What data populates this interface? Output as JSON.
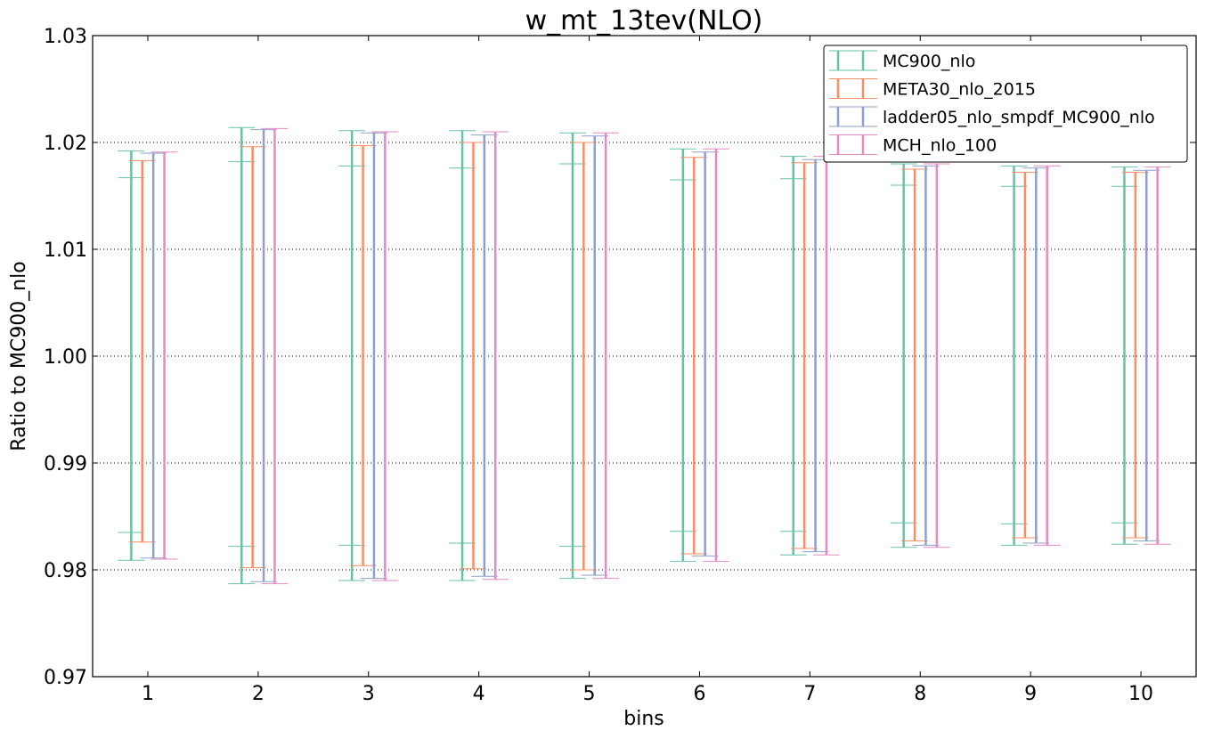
{
  "chart_data": {
    "type": "errorbar",
    "title": "w_mt_13tev(NLO)",
    "xlabel": "bins",
    "ylabel": "Ratio to MC900_nlo",
    "categories": [
      "1",
      "2",
      "3",
      "4",
      "5",
      "6",
      "7",
      "8",
      "9",
      "10"
    ],
    "xlim": [
      0.5,
      10.5
    ],
    "ylim": [
      0.97,
      1.03
    ],
    "yticks": [
      "0.97",
      "0.98",
      "0.99",
      "1.00",
      "1.01",
      "1.02",
      "1.03"
    ],
    "grid": "horizontal dotted",
    "legend_position": "top-right",
    "series": [
      {
        "name": "MC900_nlo",
        "color": "#66c2a5",
        "outer": [
          [
            0.9809,
            1.0192
          ],
          [
            0.9787,
            1.0214
          ],
          [
            0.979,
            1.0211
          ],
          [
            0.979,
            1.0211
          ],
          [
            0.9792,
            1.0209
          ],
          [
            0.9808,
            1.0194
          ],
          [
            0.9814,
            1.0187
          ],
          [
            0.9821,
            1.018
          ],
          [
            0.9823,
            1.0178
          ],
          [
            0.9824,
            1.0177
          ]
        ],
        "inner": [
          [
            0.9835,
            1.0167
          ],
          [
            0.9822,
            1.0182
          ],
          [
            0.9823,
            1.0178
          ],
          [
            0.9825,
            1.0176
          ],
          [
            0.9822,
            1.018
          ],
          [
            0.9836,
            1.0165
          ],
          [
            0.9836,
            1.0166
          ],
          [
            0.9844,
            1.016
          ],
          [
            0.9843,
            1.0159
          ],
          [
            0.9844,
            1.0159
          ]
        ]
      },
      {
        "name": "META30_nlo_2015",
        "color": "#fc8d62",
        "outer": [
          [
            0.9826,
            1.0183
          ],
          [
            0.9802,
            1.0196
          ],
          [
            0.9804,
            1.0197
          ],
          [
            0.9801,
            1.02
          ],
          [
            0.98,
            1.02
          ],
          [
            0.9815,
            1.0186
          ],
          [
            0.982,
            1.0181
          ],
          [
            0.9827,
            1.0175
          ],
          [
            0.983,
            1.0172
          ],
          [
            0.983,
            1.0172
          ]
        ]
      },
      {
        "name": "ladder05_nlo_smpdf_MC900_nlo",
        "color": "#8da0cb",
        "outer": [
          [
            0.9811,
            1.019
          ],
          [
            0.9789,
            1.0212
          ],
          [
            0.9792,
            1.0209
          ],
          [
            0.9794,
            1.0207
          ],
          [
            0.9795,
            1.0206
          ],
          [
            0.9813,
            1.0191
          ],
          [
            0.9817,
            1.0184
          ],
          [
            0.9823,
            1.0178
          ],
          [
            0.9825,
            1.0176
          ],
          [
            0.9827,
            1.0174
          ]
        ]
      },
      {
        "name": "MCH_nlo_100",
        "color": "#e78ac3",
        "outer": [
          [
            0.981,
            1.0191
          ],
          [
            0.9787,
            1.0213
          ],
          [
            0.979,
            1.021
          ],
          [
            0.9791,
            1.021
          ],
          [
            0.9792,
            1.0209
          ],
          [
            0.9808,
            1.0194
          ],
          [
            0.9814,
            1.0187
          ],
          [
            0.9821,
            1.018
          ],
          [
            0.9823,
            1.0178
          ],
          [
            0.9824,
            1.0177
          ]
        ]
      }
    ]
  }
}
